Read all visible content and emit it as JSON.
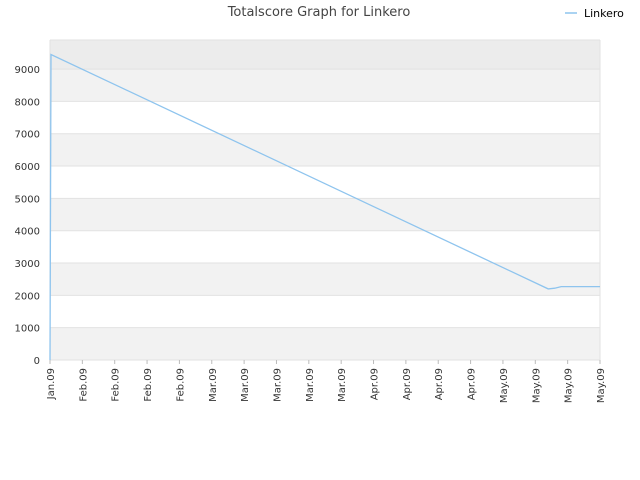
{
  "chart_data": {
    "type": "line",
    "title": "Totalscore Graph for Linkero",
    "xlabel": "",
    "ylabel": "",
    "ylim": [
      0,
      9900
    ],
    "yticks": [
      0,
      1000,
      2000,
      3000,
      4000,
      5000,
      6000,
      7000,
      8000,
      9000
    ],
    "x_tick_labels": [
      "Jan.09",
      "Feb.09",
      "Feb.09",
      "Feb.09",
      "Feb.09",
      "Mar.09",
      "Mar.09",
      "Mar.09",
      "Mar.09",
      "Mar.09",
      "Apr.09",
      "Apr.09",
      "Apr.09",
      "Apr.09",
      "May.09",
      "May.09",
      "May.09",
      "May.09"
    ],
    "legend": {
      "position": "top-right"
    },
    "grid": "horizontal alternating bands",
    "colors": {
      "line": "#8ec4ee",
      "band": "#f2f2f2",
      "band_top": "#ececec",
      "grid": "#e2e2e2"
    },
    "series": [
      {
        "name": "Linkero",
        "x_index": [
          0,
          0.03,
          15.4,
          15.6,
          15.8,
          16.0,
          17.0
        ],
        "values": [
          0,
          9450,
          2200,
          2220,
          2270,
          2270,
          2270
        ]
      }
    ]
  }
}
